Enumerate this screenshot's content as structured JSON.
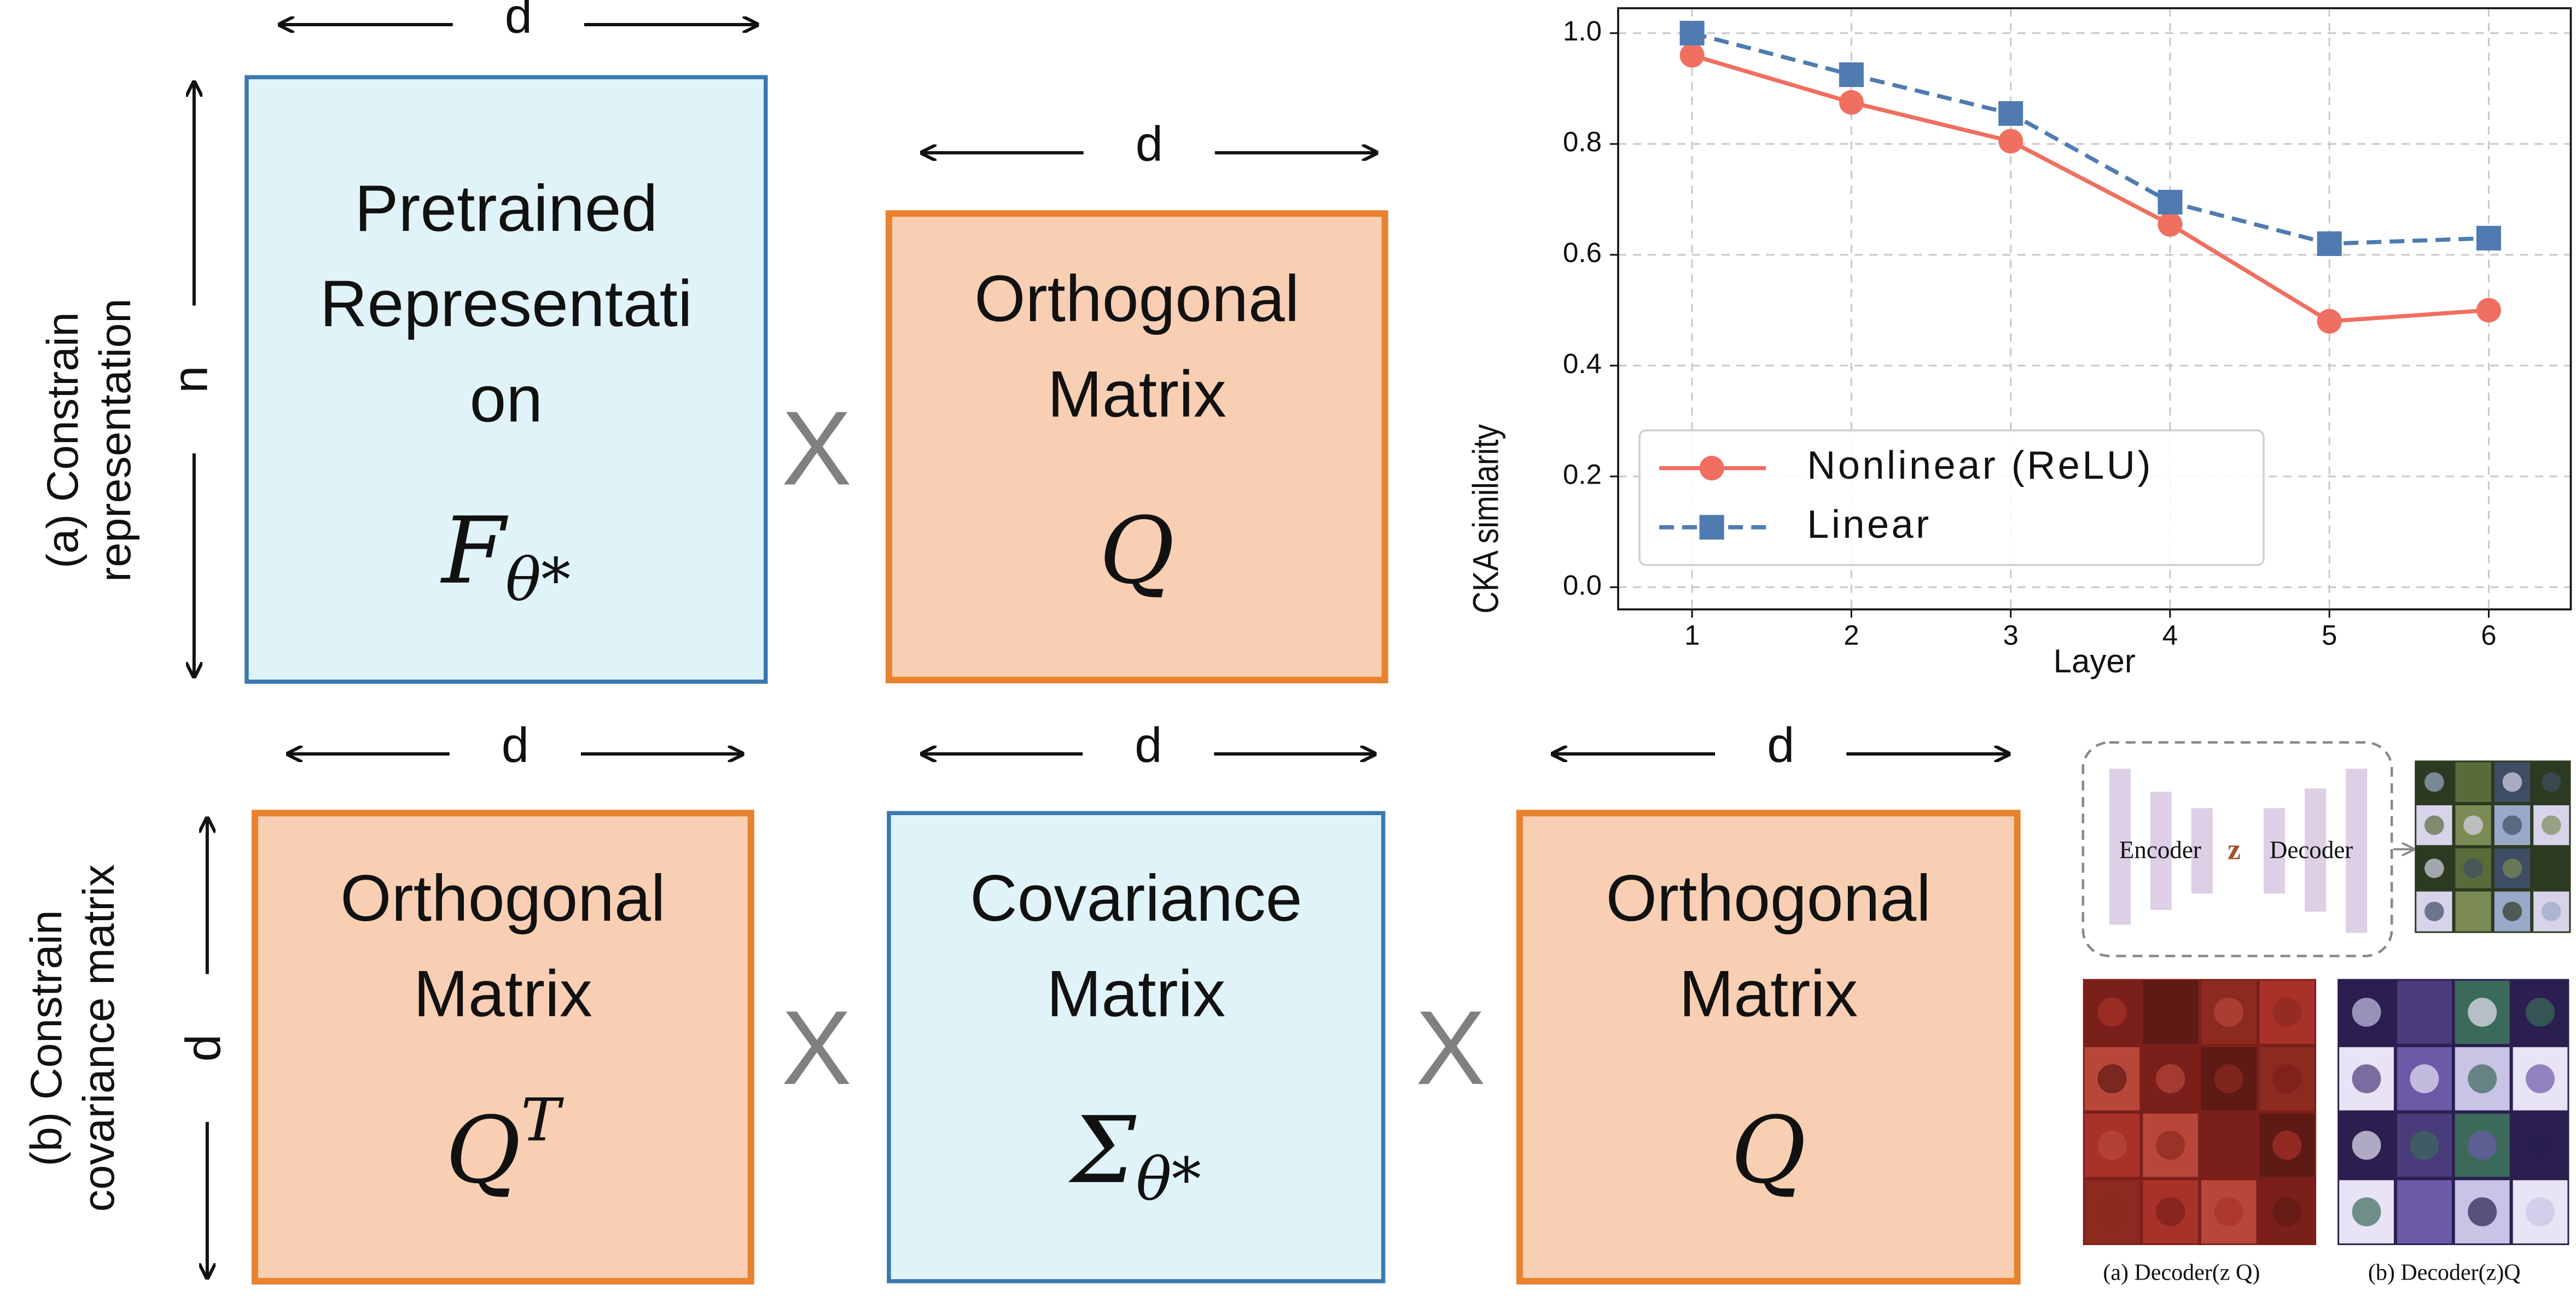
{
  "panel_a": {
    "label_lines": [
      "(a) Constrain",
      "representation"
    ],
    "height_label": "n",
    "boxes": [
      {
        "width_label": "d",
        "lines": [
          "Pretrained",
          "Representati",
          "on"
        ],
        "symbol": "F",
        "subscript": "θ*"
      },
      {
        "width_label": "d",
        "lines": [
          "Orthogonal",
          "Matrix"
        ],
        "symbol": "Q"
      }
    ],
    "operators": [
      "X"
    ]
  },
  "panel_b": {
    "label_lines": [
      "(b) Constrain",
      "covariance matrix"
    ],
    "height_label": "d",
    "boxes": [
      {
        "width_label": "d",
        "lines": [
          "Orthogonal",
          "Matrix"
        ],
        "symbol": "Q",
        "superscript": "T"
      },
      {
        "width_label": "d",
        "lines": [
          "Covariance",
          "Matrix"
        ],
        "symbol": "Σ",
        "subscript": "θ*"
      },
      {
        "width_label": "d",
        "lines": [
          "Orthogonal",
          "Matrix"
        ],
        "symbol": "Q"
      }
    ],
    "operators": [
      "X",
      "X"
    ]
  },
  "inset": {
    "encoder": "Encoder",
    "latent": "z",
    "decoder": "Decoder",
    "captions": [
      "(a) Decoder(z Q)",
      "(b) Decoder(z)Q"
    ]
  },
  "chart_data": {
    "type": "line",
    "xlabel": "Layer",
    "ylabel": "CKA similarity",
    "x": [
      1,
      2,
      3,
      4,
      5,
      6
    ],
    "series": [
      {
        "name": "Nonlinear (ReLU)",
        "color": "#ef6f61",
        "marker": "circle",
        "dashed": false,
        "values": [
          0.96,
          0.875,
          0.805,
          0.655,
          0.48,
          0.5
        ]
      },
      {
        "name": "Linear",
        "color": "#4f7bb0",
        "marker": "square",
        "dashed": true,
        "values": [
          1.0,
          0.925,
          0.855,
          0.695,
          0.62,
          0.63
        ]
      }
    ],
    "xlim": [
      0.536,
      6.515
    ],
    "ylim": [
      -0.04,
      1.045
    ],
    "xticks": [
      1,
      2,
      3,
      4,
      5,
      6
    ],
    "yticks": [
      {
        "value": 0,
        "label": "0.0"
      },
      0.2,
      0.4,
      0.6,
      0.8,
      {
        "value": 1,
        "label": "1.0"
      }
    ],
    "grid": true,
    "legend": "lower left"
  }
}
